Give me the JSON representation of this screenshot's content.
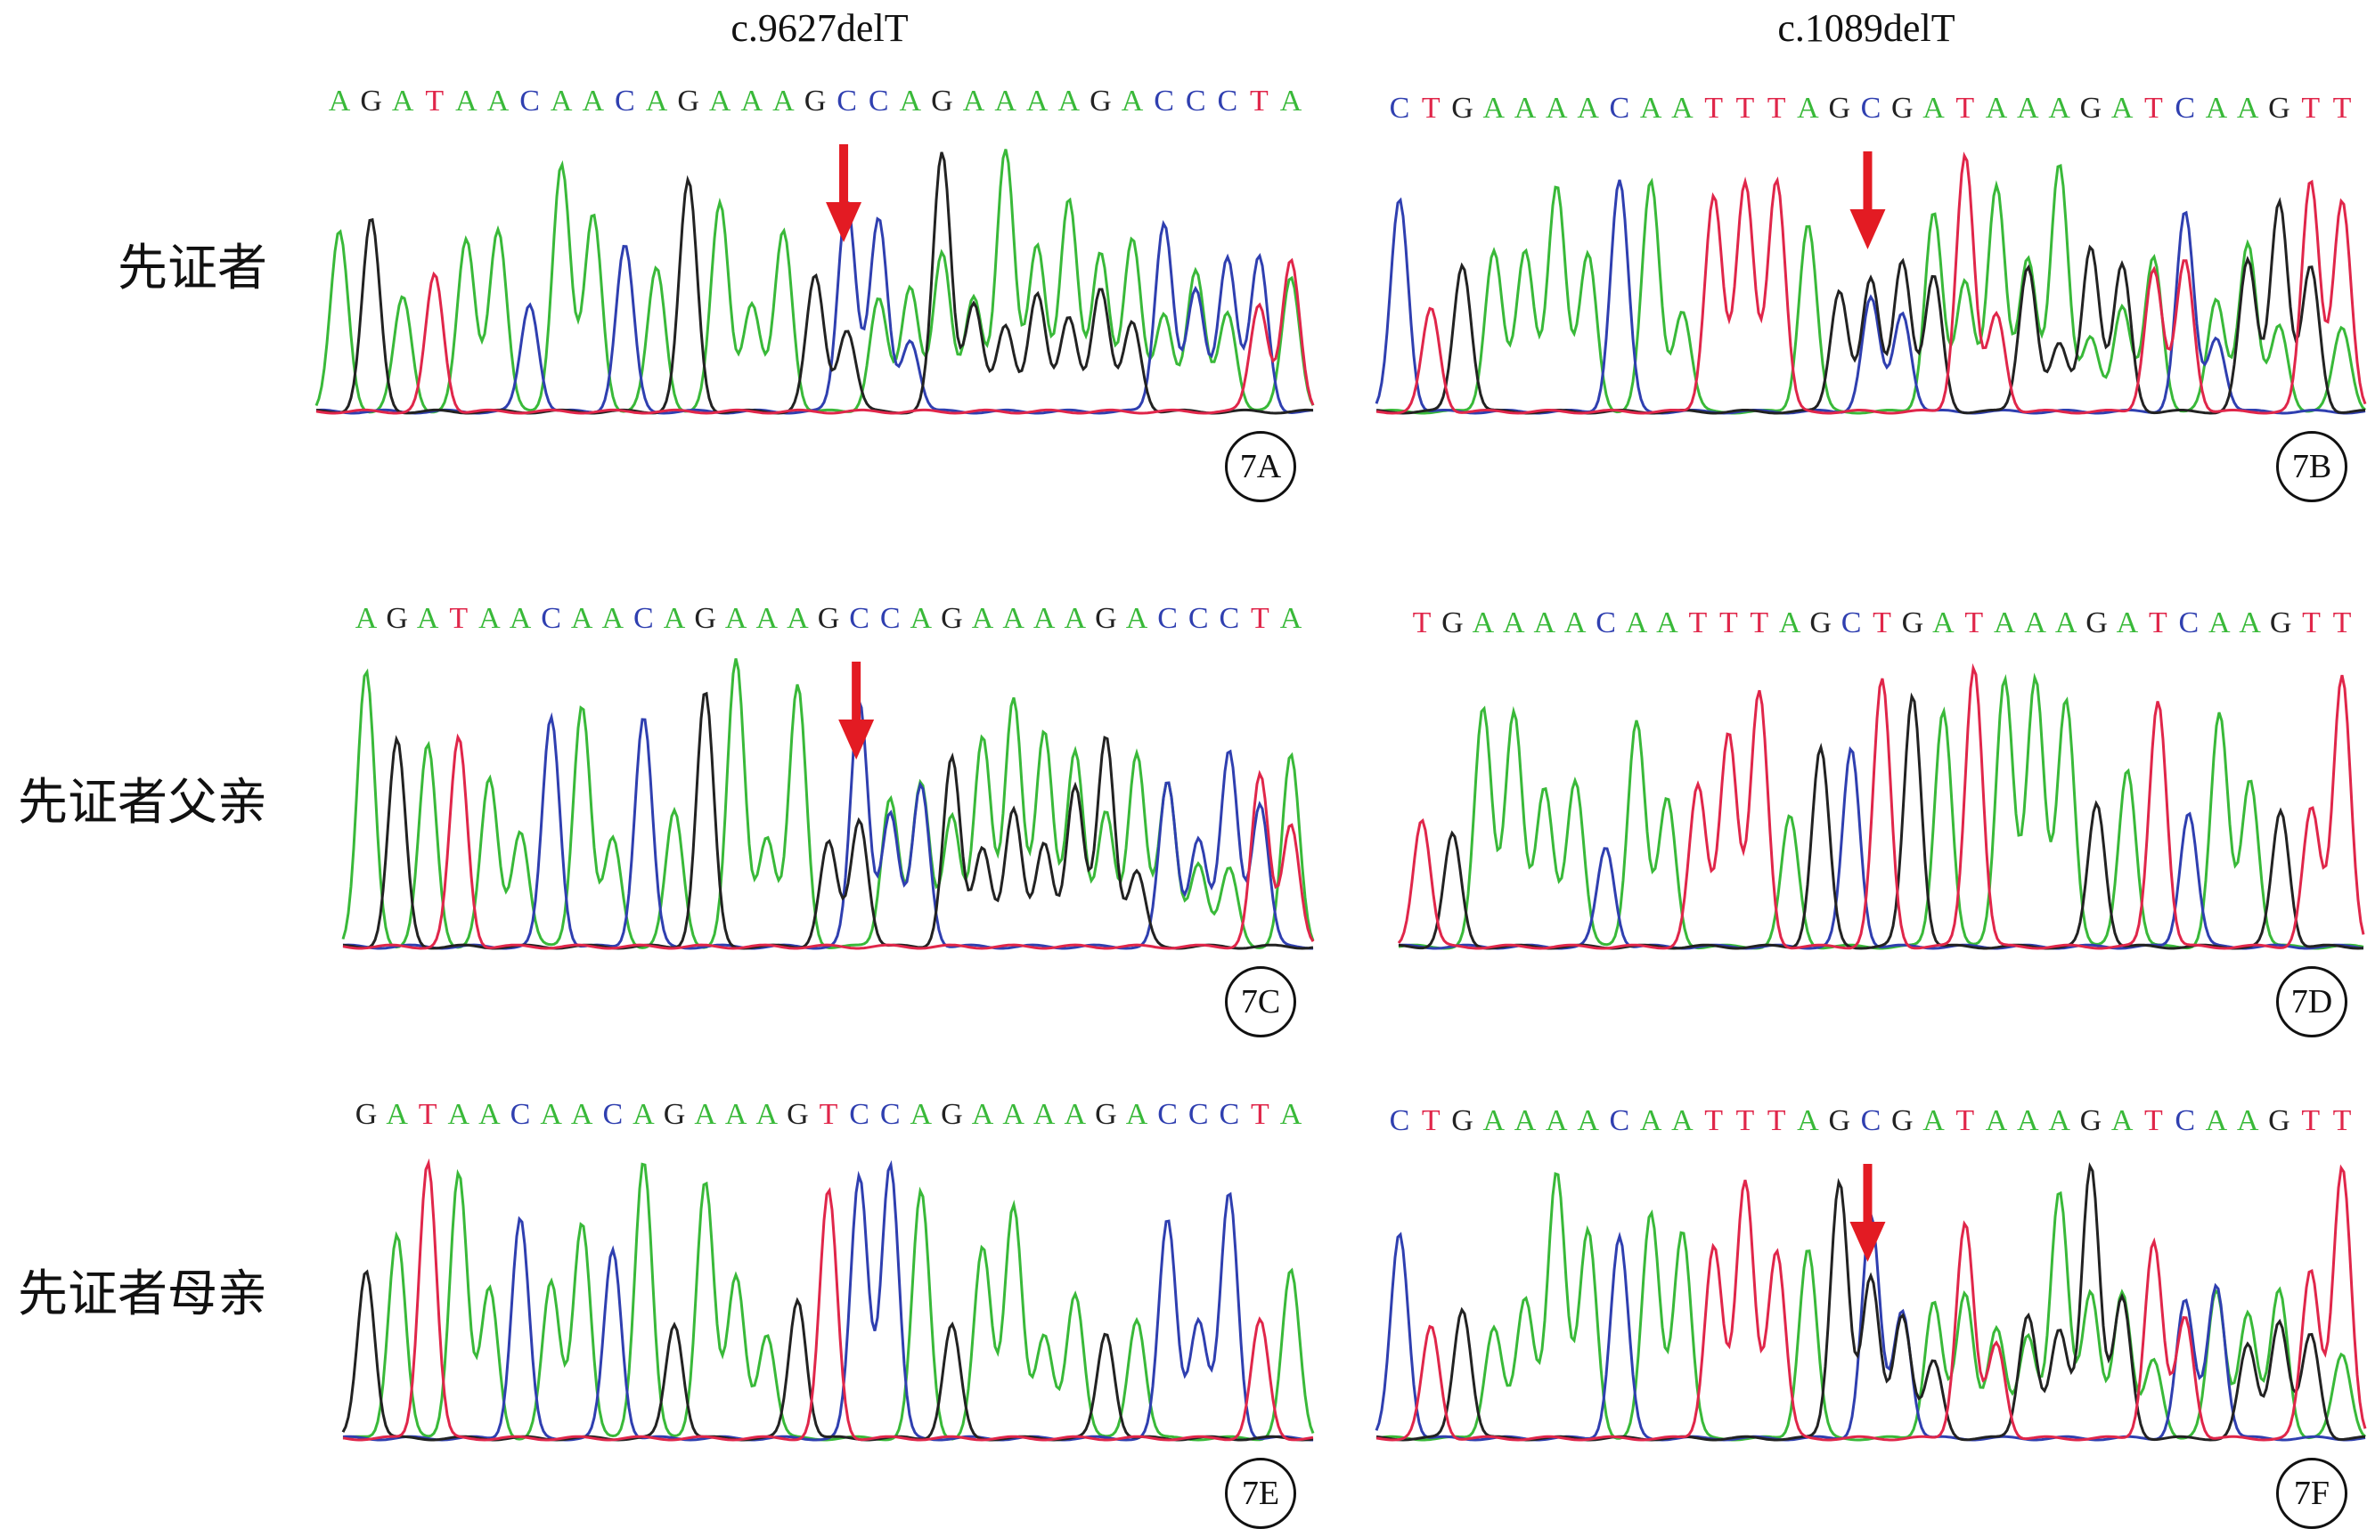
{
  "columns": [
    {
      "title": "c.9627delT"
    },
    {
      "title": "c.1089delT"
    }
  ],
  "rows": [
    {
      "label": "先证者"
    },
    {
      "label": "先证者父亲"
    },
    {
      "label": "先证者母亲"
    }
  ],
  "base_colors": {
    "A": "#39b939",
    "C": "#2f3fb0",
    "G": "#222222",
    "T": "#e0264a"
  },
  "arrow_color": "#e31b23",
  "panels": [
    {
      "id": "7A",
      "tag": "7A",
      "sequence": "AGATAACAACAGAAAGCCAGAAAAGACCCTA",
      "arrow_index": 16,
      "mixed_from": 16
    },
    {
      "id": "7B",
      "tag": "7B",
      "sequence": "CTGAAAACAATTTAGCGATAAAGATCAAGTT",
      "arrow_index": 15,
      "mixed_from": 15
    },
    {
      "id": "7C",
      "tag": "7C",
      "sequence": "AGATAACAACAGAAAGCCAGAAAAGACCCTA",
      "arrow_index": 16,
      "mixed_from": 16
    },
    {
      "id": "7D",
      "tag": "7D",
      "sequence": "TGAAAACAATTTAGCTGATAAAGATCAAGTT",
      "arrow_index": null,
      "mixed_from": null
    },
    {
      "id": "7E",
      "tag": "7E",
      "sequence": "GATAACAACAGAAAGTCCAGAAAAGACCCTA",
      "arrow_index": null,
      "mixed_from": null
    },
    {
      "id": "7F",
      "tag": "7F",
      "sequence": "CTGAAAACAATTTAGCGATAAAGATCAAGTT",
      "arrow_index": 15,
      "mixed_from": 15
    }
  ]
}
